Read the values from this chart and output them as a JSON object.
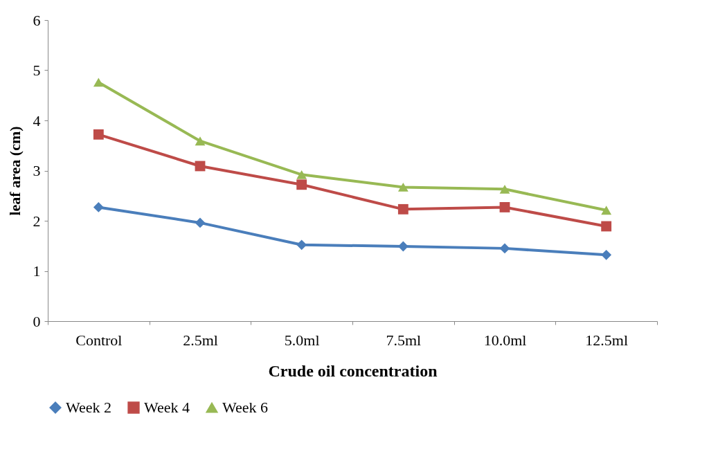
{
  "chart_data": {
    "type": "line",
    "xlabel": "Crude oil concentration",
    "ylabel": "leaf area (cm)",
    "categories": [
      "Control",
      "2.5ml",
      "5.0ml",
      "7.5ml",
      "10.0ml",
      "12.5ml"
    ],
    "series": [
      {
        "name": "Week 2",
        "color": "#4a7ebb",
        "marker": "diamond",
        "values": [
          2.27,
          1.96,
          1.52,
          1.49,
          1.45,
          1.32
        ]
      },
      {
        "name": "Week 4",
        "color": "#be4b48",
        "marker": "square",
        "values": [
          3.72,
          3.09,
          2.72,
          2.23,
          2.27,
          1.89
        ]
      },
      {
        "name": "Week 6",
        "color": "#98b954",
        "marker": "triangle",
        "values": [
          4.76,
          3.59,
          2.92,
          2.67,
          2.63,
          2.21
        ]
      }
    ],
    "ylim": [
      0,
      6
    ],
    "yticks": [
      0,
      1,
      2,
      3,
      4,
      5,
      6
    ],
    "grid": false,
    "legend": "bottom",
    "line_style": "solid"
  }
}
